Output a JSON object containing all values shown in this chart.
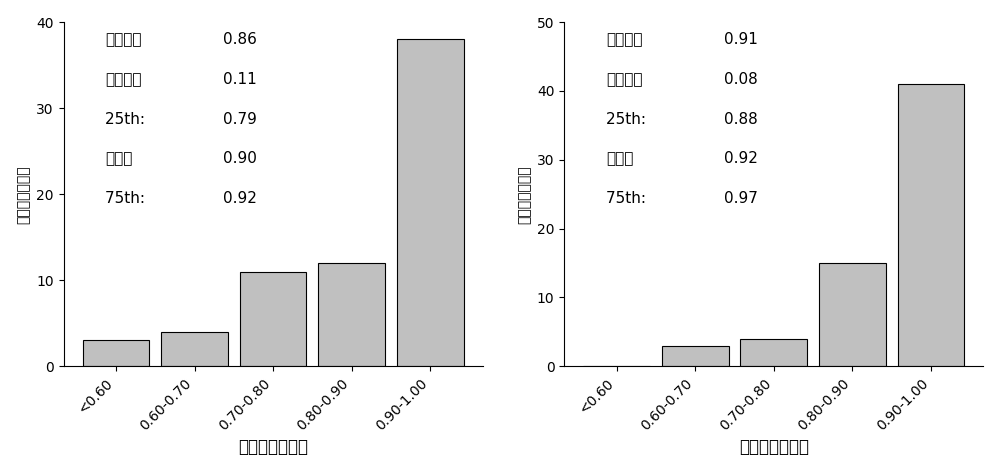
{
  "left": {
    "values": [
      3,
      4,
      11,
      12,
      38
    ],
    "categories": [
      "<0.60",
      "0.60-0.70",
      "0.70-0.80",
      "0.80-0.90",
      "0.90-1.00"
    ],
    "ylabel": "观察数量（个）",
    "xlabel": "不施氮相对产量",
    "ylim": [
      0,
      40
    ],
    "yticks": [
      0,
      10,
      20,
      30,
      40
    ],
    "stats_lines": [
      [
        "平均値：",
        "0.86"
      ],
      [
        "标准差：",
        "0.11"
      ],
      [
        "25th:  ",
        "0.79"
      ],
      [
        "中値：",
        "0.90"
      ],
      [
        "75th:  ",
        "0.92"
      ]
    ]
  },
  "right": {
    "values": [
      0,
      3,
      4,
      15,
      41
    ],
    "categories": [
      "<0.60",
      "0.60-0.70",
      "0.70-0.80",
      "0.80-0.90",
      "0.90-1.00"
    ],
    "ylabel": "观察数量（个）",
    "xlabel": "不施磷相对产量",
    "ylim": [
      0,
      50
    ],
    "yticks": [
      0,
      10,
      20,
      30,
      40,
      50
    ],
    "stats_lines": [
      [
        "平均値：",
        "0.91"
      ],
      [
        "标准差：",
        "0.08"
      ],
      [
        "25th:  ",
        "0.88"
      ],
      [
        "中値：",
        "0.92"
      ],
      [
        "75th:  ",
        "0.97"
      ]
    ]
  },
  "bar_color": "#c0c0c0",
  "bar_edgecolor": "#000000",
  "background_color": "#ffffff",
  "tick_fontsize": 10,
  "xlabel_fontsize": 12,
  "ylabel_fontsize": 10,
  "stats_fontsize": 11,
  "bar_linewidth": 0.8,
  "bar_width": 0.85
}
